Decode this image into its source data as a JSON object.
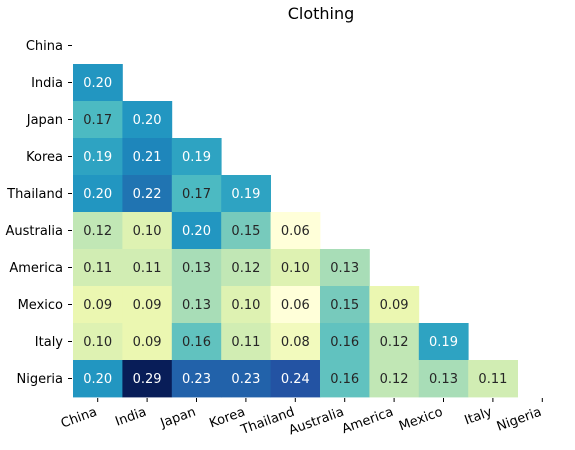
{
  "chart_data": {
    "type": "heatmap",
    "title": "Clothing",
    "xlabel": "",
    "ylabel": "",
    "categories": [
      "China",
      "India",
      "Japan",
      "Korea",
      "Thailand",
      "Australia",
      "America",
      "Mexico",
      "Italy",
      "Nigeria"
    ],
    "mask": "upper-triangle-including-diagonal",
    "value_range": [
      0.06,
      0.29
    ],
    "colormap": "YlGnBu",
    "cells": [
      {
        "row": "India",
        "col": "China",
        "value": 0.2
      },
      {
        "row": "Japan",
        "col": "China",
        "value": 0.17
      },
      {
        "row": "Japan",
        "col": "India",
        "value": 0.2
      },
      {
        "row": "Korea",
        "col": "China",
        "value": 0.19
      },
      {
        "row": "Korea",
        "col": "India",
        "value": 0.21
      },
      {
        "row": "Korea",
        "col": "Japan",
        "value": 0.19
      },
      {
        "row": "Thailand",
        "col": "China",
        "value": 0.2
      },
      {
        "row": "Thailand",
        "col": "India",
        "value": 0.22
      },
      {
        "row": "Thailand",
        "col": "Japan",
        "value": 0.17
      },
      {
        "row": "Thailand",
        "col": "Korea",
        "value": 0.19
      },
      {
        "row": "Australia",
        "col": "China",
        "value": 0.12
      },
      {
        "row": "Australia",
        "col": "India",
        "value": 0.1
      },
      {
        "row": "Australia",
        "col": "Japan",
        "value": 0.2
      },
      {
        "row": "Australia",
        "col": "Korea",
        "value": 0.15
      },
      {
        "row": "Australia",
        "col": "Thailand",
        "value": 0.06
      },
      {
        "row": "America",
        "col": "China",
        "value": 0.11
      },
      {
        "row": "America",
        "col": "India",
        "value": 0.11
      },
      {
        "row": "America",
        "col": "Japan",
        "value": 0.13
      },
      {
        "row": "America",
        "col": "Korea",
        "value": 0.12
      },
      {
        "row": "America",
        "col": "Thailand",
        "value": 0.1
      },
      {
        "row": "America",
        "col": "Australia",
        "value": 0.13
      },
      {
        "row": "Mexico",
        "col": "China",
        "value": 0.09
      },
      {
        "row": "Mexico",
        "col": "India",
        "value": 0.09
      },
      {
        "row": "Mexico",
        "col": "Japan",
        "value": 0.13
      },
      {
        "row": "Mexico",
        "col": "Korea",
        "value": 0.1
      },
      {
        "row": "Mexico",
        "col": "Thailand",
        "value": 0.06
      },
      {
        "row": "Mexico",
        "col": "Australia",
        "value": 0.15
      },
      {
        "row": "Mexico",
        "col": "America",
        "value": 0.09
      },
      {
        "row": "Italy",
        "col": "China",
        "value": 0.1
      },
      {
        "row": "Italy",
        "col": "India",
        "value": 0.09
      },
      {
        "row": "Italy",
        "col": "Japan",
        "value": 0.16
      },
      {
        "row": "Italy",
        "col": "Korea",
        "value": 0.11
      },
      {
        "row": "Italy",
        "col": "Thailand",
        "value": 0.08
      },
      {
        "row": "Italy",
        "col": "Australia",
        "value": 0.16
      },
      {
        "row": "Italy",
        "col": "America",
        "value": 0.12
      },
      {
        "row": "Italy",
        "col": "Mexico",
        "value": 0.19
      },
      {
        "row": "Nigeria",
        "col": "China",
        "value": 0.2
      },
      {
        "row": "Nigeria",
        "col": "India",
        "value": 0.29
      },
      {
        "row": "Nigeria",
        "col": "Japan",
        "value": 0.23
      },
      {
        "row": "Nigeria",
        "col": "Korea",
        "value": 0.23
      },
      {
        "row": "Nigeria",
        "col": "Thailand",
        "value": 0.24
      },
      {
        "row": "Nigeria",
        "col": "Australia",
        "value": 0.16
      },
      {
        "row": "Nigeria",
        "col": "America",
        "value": 0.12
      },
      {
        "row": "Nigeria",
        "col": "Mexico",
        "value": 0.13
      },
      {
        "row": "Nigeria",
        "col": "Italy",
        "value": 0.11
      }
    ]
  }
}
